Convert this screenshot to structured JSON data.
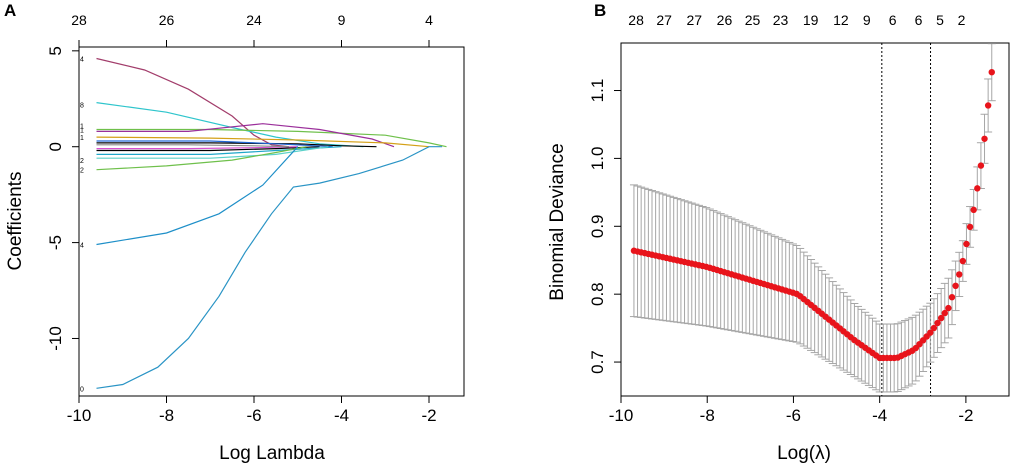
{
  "chart_data": [
    {
      "panel_label": "A",
      "type": "line",
      "title": "",
      "xlabel": "Log Lambda",
      "ylabel": "Coefficients",
      "xlim": [
        -10,
        -1.2
      ],
      "ylim": [
        -13,
        5.2
      ],
      "x_ticks": [
        -10,
        -8,
        -6,
        -4,
        -2
      ],
      "x_tick_labels": [
        "-10",
        "-8",
        "-6",
        "-4",
        "-2"
      ],
      "y_ticks": [
        -10,
        -5,
        0,
        5
      ],
      "y_tick_labels": [
        "-10",
        "-5",
        "0",
        "5"
      ],
      "top_axis": {
        "positions": [
          -10,
          -8,
          -6,
          -4,
          -2
        ],
        "labels": [
          "28",
          "26",
          "24",
          "9",
          "4"
        ]
      },
      "line_end_labels": [
        {
          "label": "4",
          "y": 4.6
        },
        {
          "label": "8",
          "y": 2.2
        },
        {
          "label": "1",
          "y": 1.1
        },
        {
          "label": "1",
          "y": 0.9
        },
        {
          "label": "1",
          "y": 0.5
        },
        {
          "label": "2",
          "y": -0.7
        },
        {
          "label": "2",
          "y": -1.2
        },
        {
          "label": "4",
          "y": -5.1
        },
        {
          "label": "0",
          "y": -12.6
        }
      ],
      "grid": false,
      "series": [
        {
          "name": "path-1",
          "color": "#a23d6b",
          "x": [
            -9.6,
            -8.5,
            -7.5,
            -6.5,
            -6.0,
            -5.6,
            -5.2
          ],
          "y": [
            4.6,
            4.0,
            3.0,
            1.6,
            0.6,
            0.1,
            0.0
          ]
        },
        {
          "name": "path-2",
          "color": "#2fc5cc",
          "x": [
            -9.6,
            -8.0,
            -6.5,
            -5.5,
            -4.5,
            -3.5
          ],
          "y": [
            2.3,
            1.8,
            1.0,
            0.5,
            0.15,
            0.0
          ]
        },
        {
          "name": "path-3",
          "color": "#6fc04b",
          "x": [
            -9.6,
            -7.0,
            -5.0,
            -3.0,
            -2.0,
            -1.6
          ],
          "y": [
            0.9,
            0.9,
            0.8,
            0.6,
            0.2,
            0.0
          ]
        },
        {
          "name": "path-4",
          "color": "#9b2f9b",
          "x": [
            -9.6,
            -7.5,
            -5.8,
            -4.5,
            -3.3,
            -2.8
          ],
          "y": [
            0.8,
            0.8,
            1.2,
            0.9,
            0.4,
            0.0
          ]
        },
        {
          "name": "path-5",
          "color": "#d4a017",
          "x": [
            -9.6,
            -7.0,
            -5.0,
            -3.0,
            -2.0
          ],
          "y": [
            0.5,
            0.45,
            0.35,
            0.2,
            0.0
          ]
        },
        {
          "name": "path-6",
          "color": "#000000",
          "x": [
            -9.6,
            -7.0,
            -5.0,
            -4.0,
            -3.2
          ],
          "y": [
            0.2,
            0.2,
            0.15,
            0.05,
            0.0
          ]
        },
        {
          "name": "path-7",
          "color": "#000000",
          "x": [
            -9.6,
            -7.0,
            -5.5,
            -4.5
          ],
          "y": [
            -0.2,
            -0.2,
            -0.1,
            0.0
          ]
        },
        {
          "name": "path-8",
          "color": "#2268d6",
          "x": [
            -9.6,
            -7.0,
            -5.5,
            -4.2
          ],
          "y": [
            0.3,
            0.3,
            0.15,
            0.0
          ]
        },
        {
          "name": "path-9",
          "color": "#1fa7c9",
          "x": [
            -9.6,
            -7.0,
            -5.5,
            -4.0
          ],
          "y": [
            -0.4,
            -0.4,
            -0.2,
            0.0
          ]
        },
        {
          "name": "path-10",
          "color": "#5ad1c9",
          "x": [
            -9.6,
            -7.0,
            -5.5,
            -4.3
          ],
          "y": [
            -0.6,
            -0.6,
            -0.4,
            0.0
          ]
        },
        {
          "name": "path-11",
          "color": "#d84fd0",
          "x": [
            -9.6,
            -7.5,
            -6.0,
            -5.0
          ],
          "y": [
            -0.1,
            -0.1,
            -0.05,
            0.0
          ]
        },
        {
          "name": "path-12",
          "color": "#8a8a8a",
          "x": [
            -9.6,
            -7.5,
            -6.0,
            -5.2
          ],
          "y": [
            0.1,
            0.1,
            0.05,
            0.0
          ]
        },
        {
          "name": "path-13",
          "color": "#6fc04b",
          "x": [
            -9.6,
            -8.0,
            -6.5,
            -5.5,
            -4.8
          ],
          "y": [
            -1.2,
            -1.0,
            -0.7,
            -0.3,
            0.0
          ]
        },
        {
          "name": "path-14",
          "color": "#1e8fc8",
          "x": [
            -9.6,
            -8.0,
            -6.8,
            -5.8,
            -5.0
          ],
          "y": [
            -5.1,
            -4.5,
            -3.5,
            -2.0,
            0.0
          ]
        },
        {
          "name": "path-15",
          "color": "#2a94c5",
          "x": [
            -9.6,
            -9.0,
            -8.2,
            -7.5,
            -6.8,
            -6.2,
            -5.6,
            -5.1,
            -4.5,
            -3.6,
            -2.6,
            -2.0,
            -1.7
          ],
          "y": [
            -12.6,
            -12.4,
            -11.5,
            -10.0,
            -7.8,
            -5.5,
            -3.5,
            -2.1,
            -1.9,
            -1.4,
            -0.7,
            0.0,
            0.0
          ]
        }
      ]
    },
    {
      "panel_label": "B",
      "type": "scatter",
      "title": "",
      "xlabel": "Log(λ)",
      "ylabel": "Binomial Deviance",
      "xlim": [
        -10,
        -1.0
      ],
      "ylim": [
        0.65,
        1.17
      ],
      "x_ticks": [
        -10,
        -8,
        -6,
        -4,
        -2
      ],
      "x_tick_labels": [
        "-10",
        "-8",
        "-6",
        "-4",
        "-2"
      ],
      "y_ticks": [
        0.7,
        0.8,
        0.9,
        1.0,
        1.1
      ],
      "y_tick_labels": [
        "0.7",
        "0.8",
        "0.9",
        "1.0",
        "1.1"
      ],
      "top_axis": {
        "positions": [
          -9.65,
          -9.0,
          -8.3,
          -7.6,
          -6.95,
          -6.3,
          -5.6,
          -4.9,
          -4.3,
          -3.7,
          -3.1,
          -2.6,
          -2.1
        ],
        "labels": [
          "28",
          "27",
          "27",
          "26",
          "25",
          "23",
          "19",
          "12",
          "9",
          "6",
          "6",
          "5",
          "2"
        ]
      },
      "vlines": [
        -3.95,
        -2.82
      ],
      "point_color": "#e8141b",
      "errorbar_color": "#a6a6a6",
      "x_range_points": [
        -9.7,
        -1.4
      ],
      "series": [
        {
          "name": "cv-binomial-deviance",
          "control_x": [
            -9.7,
            -8.0,
            -5.9,
            -4.6,
            -4.0,
            -3.6,
            -3.2,
            -2.8,
            -2.4,
            -2.1,
            -1.8,
            -1.6,
            -1.4
          ],
          "control_y": [
            0.864,
            0.84,
            0.8,
            0.733,
            0.706,
            0.706,
            0.718,
            0.745,
            0.78,
            0.84,
            0.93,
            1.01,
            1.127
          ],
          "error_halfwidth": [
            0.097,
            0.087,
            0.071,
            0.054,
            0.05,
            0.05,
            0.049,
            0.043,
            0.044,
            0.03,
            0.03,
            0.035,
            0.042
          ]
        }
      ]
    }
  ]
}
